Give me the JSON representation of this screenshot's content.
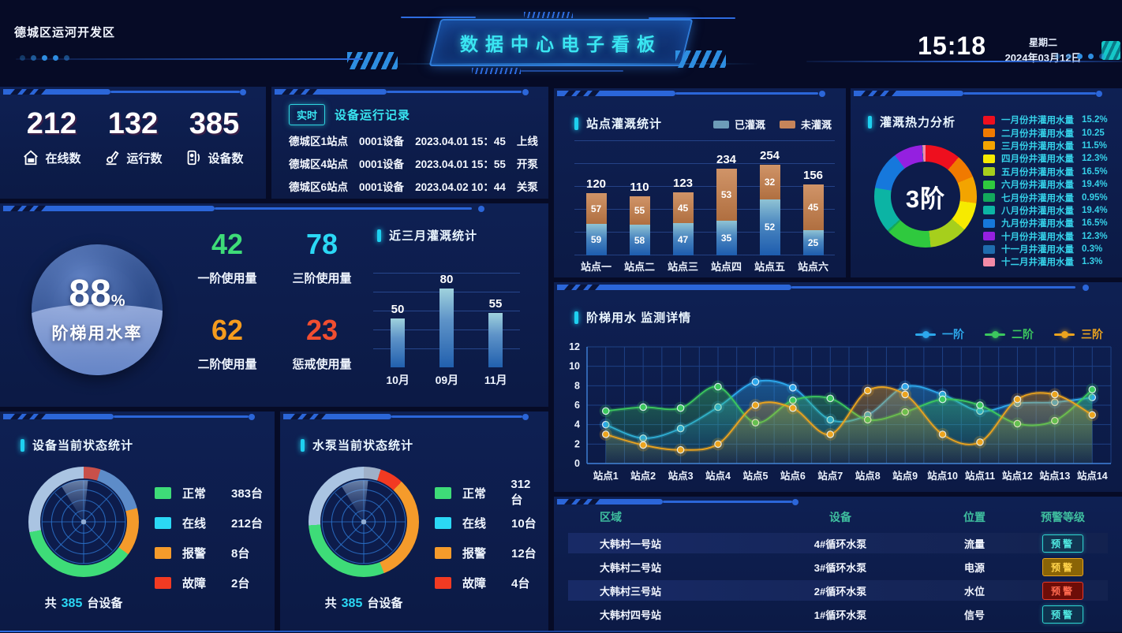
{
  "header": {
    "region": "德城区运河开发区",
    "title": "数据中心电子看板",
    "time": "15:18",
    "weekday": "星期二",
    "date": "2024年03月12日"
  },
  "stats": {
    "items": [
      {
        "icon": "house-icon",
        "value": "212",
        "label": "在线数"
      },
      {
        "icon": "machine-icon",
        "value": "132",
        "label": "运行数"
      },
      {
        "icon": "device-icon",
        "value": "385",
        "label": "设备数"
      }
    ]
  },
  "device_log": {
    "badge": "实时",
    "title": "设备运行记录",
    "rows": [
      {
        "station": "德城区1站点",
        "device": "0001设备",
        "time": "2023.04.01 15：45",
        "action": "上线"
      },
      {
        "station": "德城区4站点",
        "device": "0001设备",
        "time": "2023.04.01 15：55",
        "action": "开泵"
      },
      {
        "station": "德城区6站点",
        "device": "0001设备",
        "time": "2023.04.02 10：44",
        "action": "关泵"
      }
    ]
  },
  "water_rate": {
    "percent": "88",
    "percent_unit": "%",
    "label": "阶梯用水率",
    "metrics": [
      {
        "value": "42",
        "label": "一阶使用量",
        "color": "#3edc78"
      },
      {
        "value": "78",
        "label": "三阶使用量",
        "color": "#2bd8f5"
      },
      {
        "value": "62",
        "label": "二阶使用量",
        "color": "#f59b1e"
      },
      {
        "value": "23",
        "label": "惩戒使用量",
        "color": "#f24e30"
      }
    ]
  },
  "alarm_table": {
    "headers": [
      "区域",
      "设备",
      "位置",
      "预警等级"
    ],
    "rows": [
      {
        "area": "大韩村一号站",
        "device": "4#循环水泵",
        "position": "流量",
        "level": "预警",
        "style": "teal"
      },
      {
        "area": "大韩村二号站",
        "device": "3#循环水泵",
        "position": "电源",
        "level": "预警",
        "style": "amber"
      },
      {
        "area": "大韩村三号站",
        "device": "2#循环水泵",
        "position": "水位",
        "level": "预警",
        "style": "red"
      },
      {
        "area": "大韩村四号站",
        "device": "1#循环水泵",
        "position": "信号",
        "level": "预警",
        "style": "teal"
      }
    ]
  },
  "chart_data": [
    {
      "id": "station_irrigation",
      "type": "bar",
      "stacked": true,
      "title": "站点灌溉统计",
      "categories": [
        "站点一",
        "站点二",
        "站点三",
        "站点四",
        "站点五",
        "站点六"
      ],
      "totals": [
        120,
        110,
        123,
        234,
        254,
        156
      ],
      "series": [
        {
          "name": "已灌溉",
          "color": "#6d9cb8",
          "values": [
            59,
            58,
            47,
            35,
            52,
            25
          ]
        },
        {
          "name": "未灌溉",
          "color": "#c5845a",
          "values": [
            57,
            55,
            45,
            53,
            32,
            45
          ]
        }
      ],
      "legend_position": "top-right",
      "grid": true
    },
    {
      "id": "heat_analysis",
      "type": "pie",
      "title": "灌溉热力分析",
      "center_label": "3阶",
      "labels": [
        "一月份井灌用水量",
        "二月份井灌用水量",
        "三月份井灌用水量",
        "四月份井灌用水量",
        "五月份井灌用水量",
        "六月份井灌用水量",
        "七月份井灌用水量",
        "八月份井灌用水量",
        "九月份井灌用水量",
        "十月份井灌用水量",
        "十一月井灌用水量",
        "十二月井灌用水量"
      ],
      "display_values": [
        "15.2%",
        "10.25",
        "11.5%",
        "12.3%",
        "16.5%",
        "19.4%",
        "0.95%",
        "19.4%",
        "16.5%",
        "12.3%",
        "0.3%",
        "1.3%"
      ],
      "values": [
        15.2,
        10.25,
        11.5,
        12.3,
        16.5,
        19.4,
        0.95,
        19.4,
        16.5,
        12.3,
        0.3,
        1.3
      ],
      "colors": [
        "#ee0f1e",
        "#f07a00",
        "#f3a400",
        "#f6ea00",
        "#a6cf1c",
        "#2fc93e",
        "#13a85c",
        "#0cb4a4",
        "#1678dc",
        "#9420e0",
        "#1f6cae",
        "#f28aa6"
      ],
      "legend_position": "right"
    },
    {
      "id": "recent_three_month",
      "type": "bar",
      "title": "近三月灌溉统计",
      "categories": [
        "10月",
        "09月",
        "11月"
      ],
      "values": [
        50,
        80,
        55
      ],
      "grid": true
    },
    {
      "id": "tier_monitor",
      "type": "line",
      "title": "阶梯用水 监测详情",
      "categories": [
        "站点1",
        "站点2",
        "站点3",
        "站点4",
        "站点5",
        "站点6",
        "站点7",
        "站点8",
        "站点9",
        "站点10",
        "站点11",
        "站点12",
        "站点13",
        "站点14"
      ],
      "series": [
        {
          "name": "一阶",
          "color": "#2da8ec",
          "values": [
            4.0,
            2.6,
            3.6,
            5.8,
            8.4,
            7.8,
            4.5,
            5.0,
            7.9,
            7.1,
            5.4,
            6.2,
            6.3,
            6.8
          ]
        },
        {
          "name": "二阶",
          "color": "#3cc95e",
          "values": [
            5.4,
            5.8,
            5.7,
            7.9,
            4.2,
            6.5,
            6.7,
            4.5,
            5.3,
            6.6,
            6.0,
            4.1,
            4.4,
            7.6
          ]
        },
        {
          "name": "三阶",
          "color": "#eca41e",
          "values": [
            3.0,
            1.9,
            1.4,
            2.0,
            6.0,
            5.7,
            3.0,
            7.5,
            7.1,
            3.0,
            2.2,
            6.6,
            7.1,
            5.0
          ]
        }
      ],
      "ylim": [
        0,
        12
      ],
      "yticks": [
        0,
        2,
        4,
        6,
        8,
        10,
        12
      ],
      "grid": true,
      "legend_position": "top-right"
    },
    {
      "id": "device_status",
      "type": "pie",
      "title": "设备当前状态统计",
      "labels": [
        "正常",
        "在线",
        "报警",
        "故障"
      ],
      "values": [
        383,
        212,
        8,
        2
      ],
      "display_values": [
        "383台",
        "212台",
        "8台",
        "2台"
      ],
      "colors": [
        "#3edc78",
        "#2bd8f5",
        "#f59b2b",
        "#f23a22"
      ],
      "total_prefix": "共",
      "total": "385",
      "total_suffix": "台设备",
      "ring": [
        [
          "#c8504a",
          5
        ],
        [
          "#5d8cc9",
          16
        ],
        [
          "#f59b2b",
          14
        ],
        [
          "#3edc78",
          37
        ],
        [
          "#aac4e2",
          28
        ]
      ]
    },
    {
      "id": "pump_status",
      "type": "pie",
      "title": "水泵当前状态统计",
      "labels": [
        "正常",
        "在线",
        "报警",
        "故障"
      ],
      "values": [
        312,
        10,
        12,
        4
      ],
      "display_values": [
        "312台",
        "10台",
        "12台",
        "4台"
      ],
      "colors": [
        "#3edc78",
        "#2bd8f5",
        "#f59b2b",
        "#f23a22"
      ],
      "total_prefix": "共",
      "total": "385",
      "total_suffix": "台设备",
      "ring": [
        [
          "#9fb0c8",
          5
        ],
        [
          "#f23a22",
          7
        ],
        [
          "#f59b2b",
          32
        ],
        [
          "#3edc78",
          30
        ],
        [
          "#aac4e2",
          26
        ]
      ]
    }
  ]
}
